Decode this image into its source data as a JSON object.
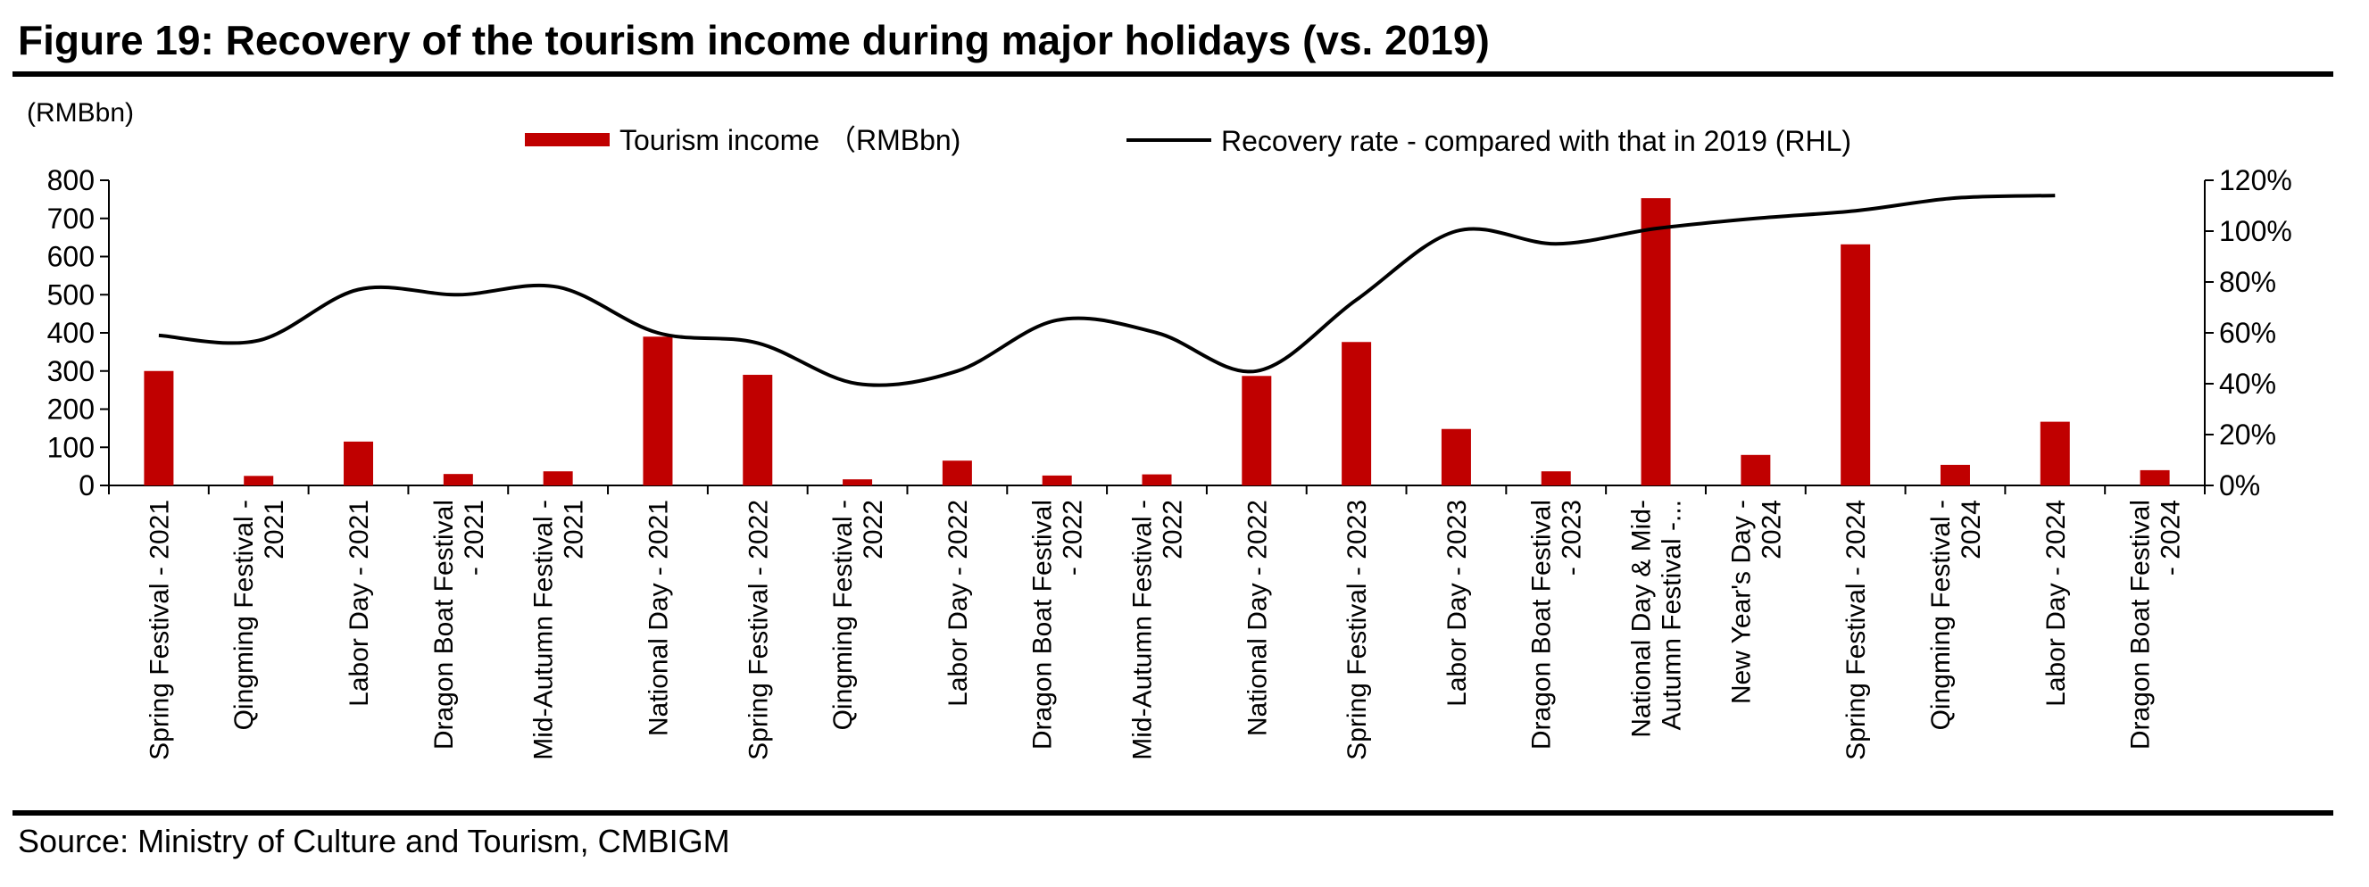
{
  "figure_title": "Figure 19: Recovery of the tourism income during major holidays (vs. 2019)",
  "source": "Source: Ministry of Culture and Tourism, CMBIGM",
  "colors": {
    "bar": "#c00000",
    "line": "#000000"
  },
  "chart_data": {
    "type": "bar",
    "y_unit_label": "(RMBbn)",
    "categories": [
      "Spring Festival - 2021",
      "Qingming Festival - 2021",
      "Labor Day - 2021",
      "Dragon Boat Festival - 2021",
      "Mid-Autumn Festival - 2021",
      "National Day - 2021",
      "Spring Festival - 2022",
      "Qingming Festival - 2022",
      "Labor Day - 2022",
      "Dragon Boat Festival - 2022",
      "Mid-Autumn Festival - 2022",
      "National Day - 2022",
      "Spring Festival - 2023",
      "Labor Day - 2023",
      "Dragon Boat Festival - 2023",
      "National Day & Mid-Autumn Festival -...",
      "New Year's Day - 2024",
      "Spring Festival - 2024",
      "Qingming Festival - 2024",
      "Labor Day - 2024",
      "Dragon Boat Festival - 2024"
    ],
    "category_lines": [
      [
        "Spring Festival - 2021"
      ],
      [
        "Qingming Festival -",
        "2021"
      ],
      [
        "Labor Day - 2021"
      ],
      [
        "Dragon Boat Festival",
        "- 2021"
      ],
      [
        "Mid-Autumn Festival -",
        "2021"
      ],
      [
        "National Day - 2021"
      ],
      [
        "Spring Festival - 2022"
      ],
      [
        "Qingming Festival -",
        "2022"
      ],
      [
        "Labor Day - 2022"
      ],
      [
        "Dragon Boat Festival",
        "- 2022"
      ],
      [
        "Mid-Autumn Festival -",
        "2022"
      ],
      [
        "National Day - 2022"
      ],
      [
        "Spring Festival - 2023"
      ],
      [
        "Labor Day - 2023"
      ],
      [
        "Dragon Boat Festival",
        "- 2023"
      ],
      [
        "National Day & Mid-",
        "Autumn Festival -..."
      ],
      [
        "New Year's Day -",
        "2024"
      ],
      [
        "Spring Festival - 2024"
      ],
      [
        "Qingming Festival -",
        "2024"
      ],
      [
        "Labor Day - 2024"
      ],
      [
        "Dragon Boat Festival",
        "- 2024"
      ]
    ],
    "series": [
      {
        "name": "Tourism income （RMBbn)",
        "type": "bar",
        "axis": "left",
        "values": [
          300,
          25,
          115,
          30,
          37,
          390,
          290,
          16,
          65,
          26,
          29,
          287,
          376,
          148,
          37,
          753,
          80,
          632,
          54,
          167,
          40
        ]
      },
      {
        "name": "Recovery rate - compared with that in 2019 (RHL)",
        "type": "line",
        "axis": "right",
        "values": [
          59,
          57,
          77,
          75,
          78,
          60,
          56,
          40,
          45,
          65,
          60,
          45,
          73,
          100,
          95,
          101,
          105,
          108,
          113,
          114,
          null
        ]
      }
    ],
    "y_left": {
      "min": 0,
      "max": 800,
      "ticks": [
        "0",
        "100",
        "200",
        "300",
        "400",
        "500",
        "600",
        "700",
        "800"
      ]
    },
    "y_right": {
      "min": 0,
      "max": 120,
      "ticks": [
        "0%",
        "20%",
        "40%",
        "60%",
        "80%",
        "100%",
        "120%"
      ]
    },
    "grid": false,
    "legend_position": "top"
  }
}
